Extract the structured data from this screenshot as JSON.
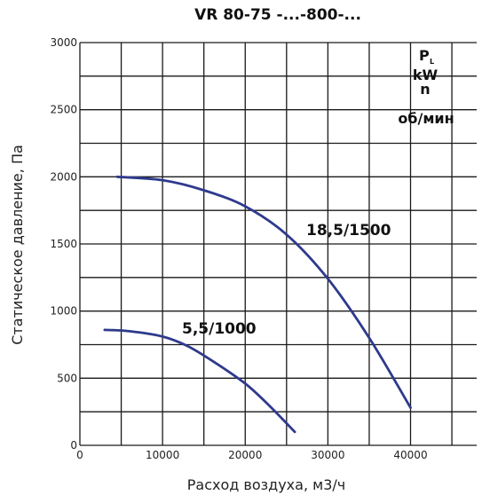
{
  "chart_data": {
    "type": "line",
    "title": "VR 80-75 -...-800-...",
    "xlabel": "Расход воздуха, м3/ч",
    "ylabel": "Статическое давление, Па",
    "xlim": [
      0,
      48000
    ],
    "ylim": [
      0,
      3000
    ],
    "x_ticks": [
      0,
      10000,
      20000,
      30000,
      40000
    ],
    "x_tick_labels": [
      "0",
      "10000",
      "20000",
      "30000",
      "40000"
    ],
    "y_ticks": [
      0,
      500,
      1000,
      1500,
      2000,
      2500,
      3000
    ],
    "y_tick_labels": [
      "0",
      "500",
      "1000",
      "1500",
      "2000",
      "2500",
      "3000"
    ],
    "grid": true,
    "line_color": "#2e3a8c",
    "legend": {
      "p": "P",
      "p_sub": "L",
      "kw": "kW",
      "n": "n",
      "rpm": "об/мин"
    },
    "series": [
      {
        "name": "18,5/1500",
        "x": [
          4500,
          10000,
          15000,
          20000,
          25000,
          30000,
          35000,
          40000
        ],
        "y": [
          2000,
          1975,
          1900,
          1780,
          1570,
          1240,
          800,
          280
        ]
      },
      {
        "name": "5,5/1000",
        "x": [
          3000,
          6000,
          10000,
          13000,
          16000,
          20000,
          23000,
          26000
        ],
        "y": [
          860,
          850,
          810,
          740,
          630,
          460,
          290,
          100
        ]
      }
    ]
  }
}
